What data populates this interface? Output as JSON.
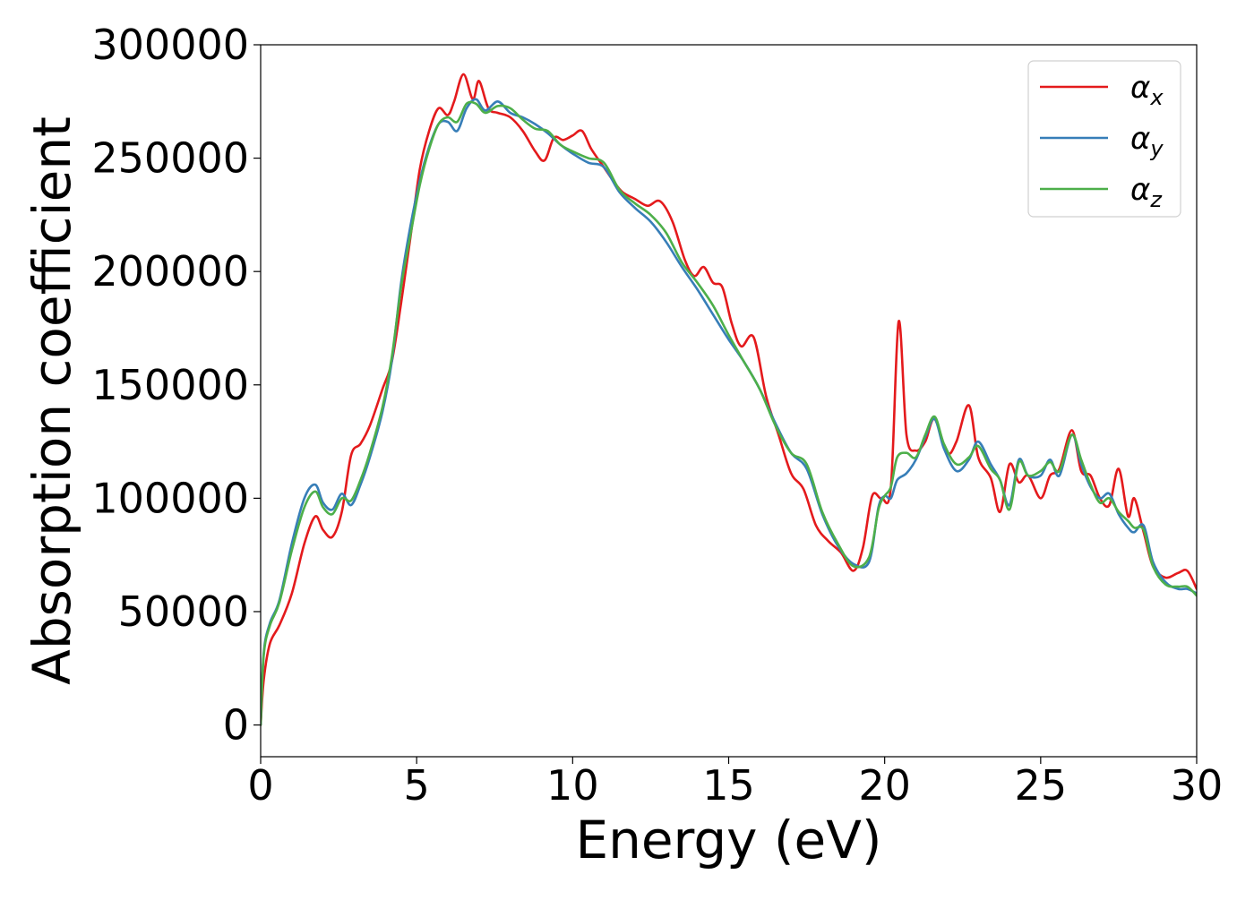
{
  "chart_data": {
    "type": "line",
    "title": "",
    "xlabel": "Energy (eV)",
    "ylabel": "Absorption coefficient",
    "xlim": [
      0,
      30
    ],
    "ylim": [
      -14000,
      300000
    ],
    "xticks": [
      0,
      5,
      10,
      15,
      20,
      25,
      30
    ],
    "xtick_labels": [
      "0",
      "5",
      "10",
      "15",
      "20",
      "25",
      "30"
    ],
    "yticks": [
      0,
      50000,
      100000,
      150000,
      200000,
      250000,
      300000
    ],
    "ytick_labels": [
      "0",
      "50000",
      "100000",
      "150000",
      "200000",
      "250000",
      "300000"
    ],
    "grid": false,
    "legend_position": "top-right",
    "series": [
      {
        "name": "α_x",
        "legend_symbol": "α",
        "legend_subscript": "x",
        "color": "#e41a1c",
        "x": [
          0,
          0.1,
          0.3,
          0.6,
          1.0,
          1.4,
          1.75,
          2.0,
          2.3,
          2.6,
          2.9,
          3.2,
          3.5,
          3.9,
          4.2,
          4.5,
          4.8,
          5.1,
          5.4,
          5.7,
          6.0,
          6.2,
          6.5,
          6.8,
          7.0,
          7.3,
          7.6,
          8.0,
          8.4,
          8.8,
          9.1,
          9.4,
          9.7,
          10.0,
          10.3,
          10.6,
          11.0,
          11.3,
          11.6,
          12.0,
          12.4,
          12.8,
          13.2,
          13.6,
          13.9,
          14.2,
          14.5,
          14.8,
          15.1,
          15.4,
          15.8,
          16.2,
          16.6,
          17.0,
          17.4,
          17.8,
          18.2,
          18.6,
          19.0,
          19.3,
          19.6,
          19.9,
          20.2,
          20.45,
          20.7,
          21.0,
          21.3,
          21.6,
          22.0,
          22.3,
          22.7,
          23.0,
          23.4,
          23.7,
          24.0,
          24.3,
          24.6,
          25.0,
          25.3,
          25.6,
          26.0,
          26.3,
          26.6,
          26.9,
          27.2,
          27.5,
          27.8,
          28.0,
          28.3,
          28.6,
          29.0,
          29.4,
          29.7,
          30.0
        ],
        "values": [
          0,
          20000,
          36000,
          44000,
          58000,
          80000,
          92000,
          86000,
          83000,
          94000,
          119000,
          124000,
          132000,
          148000,
          160000,
          186000,
          215000,
          245000,
          262000,
          272000,
          269000,
          275000,
          287000,
          276000,
          284000,
          272000,
          270000,
          268000,
          262000,
          253000,
          249000,
          259000,
          258000,
          260000,
          262000,
          254000,
          246000,
          240000,
          235000,
          232000,
          229000,
          231000,
          222000,
          205000,
          198000,
          202000,
          195000,
          193000,
          177000,
          167000,
          171000,
          145000,
          128000,
          111000,
          104000,
          88000,
          81000,
          76000,
          68000,
          78000,
          101000,
          100000,
          105000,
          178000,
          128000,
          121000,
          125000,
          135000,
          120000,
          125000,
          141000,
          118000,
          109000,
          94000,
          115000,
          107000,
          110000,
          100000,
          110000,
          113000,
          130000,
          112000,
          110000,
          100000,
          97000,
          113000,
          92000,
          100000,
          85000,
          70000,
          65000,
          67000,
          68000,
          60000
        ]
      },
      {
        "name": "α_y",
        "legend_symbol": "α",
        "legend_subscript": "y",
        "color": "#377eb8",
        "x": [
          0,
          0.1,
          0.3,
          0.6,
          1.0,
          1.4,
          1.75,
          2.0,
          2.3,
          2.6,
          2.9,
          3.2,
          3.5,
          3.9,
          4.2,
          4.5,
          4.8,
          5.1,
          5.4,
          5.7,
          6.0,
          6.3,
          6.6,
          6.9,
          7.2,
          7.6,
          8.0,
          8.4,
          8.8,
          9.2,
          9.6,
          10.0,
          10.5,
          11.0,
          11.5,
          12.0,
          12.5,
          13.0,
          13.5,
          14.0,
          14.5,
          15.0,
          15.5,
          16.0,
          16.5,
          17.0,
          17.5,
          18.0,
          18.5,
          19.0,
          19.5,
          19.8,
          20.0,
          20.2,
          20.4,
          20.7,
          21.0,
          21.3,
          21.6,
          21.9,
          22.3,
          22.7,
          23.0,
          23.4,
          23.7,
          24.0,
          24.3,
          24.6,
          25.0,
          25.3,
          25.6,
          26.0,
          26.3,
          26.6,
          26.9,
          27.2,
          27.5,
          27.8,
          28.0,
          28.3,
          28.6,
          29.0,
          29.4,
          29.7,
          30.0
        ],
        "values": [
          0,
          32000,
          45000,
          55000,
          80000,
          100000,
          106000,
          98000,
          95000,
          102000,
          97000,
          106000,
          118000,
          138000,
          160000,
          195000,
          220000,
          240000,
          255000,
          265000,
          266000,
          262000,
          272000,
          276000,
          271000,
          275000,
          270000,
          268000,
          265000,
          261000,
          256000,
          252000,
          248000,
          246000,
          235000,
          228000,
          222000,
          213000,
          202000,
          192000,
          181000,
          170000,
          160000,
          148000,
          133000,
          120000,
          113000,
          93000,
          79000,
          71000,
          72000,
          96000,
          101000,
          100000,
          108000,
          111000,
          117000,
          127000,
          135000,
          122000,
          112000,
          117000,
          125000,
          115000,
          108000,
          97000,
          117000,
          110000,
          110000,
          117000,
          110000,
          128000,
          115000,
          105000,
          100000,
          102000,
          93000,
          87000,
          85000,
          88000,
          72000,
          63000,
          60000,
          60000,
          58000
        ]
      },
      {
        "name": "α_z",
        "legend_symbol": "α",
        "legend_subscript": "z",
        "color": "#4daf4a",
        "x": [
          0,
          0.1,
          0.3,
          0.6,
          1.0,
          1.4,
          1.75,
          2.0,
          2.3,
          2.6,
          2.9,
          3.2,
          3.5,
          3.9,
          4.2,
          4.5,
          4.8,
          5.1,
          5.4,
          5.7,
          6.0,
          6.3,
          6.6,
          6.9,
          7.2,
          7.6,
          8.0,
          8.4,
          8.8,
          9.2,
          9.6,
          10.0,
          10.5,
          11.0,
          11.5,
          12.0,
          12.5,
          13.0,
          13.5,
          14.0,
          14.5,
          15.0,
          15.5,
          16.0,
          16.5,
          17.0,
          17.5,
          18.0,
          18.5,
          19.0,
          19.5,
          19.8,
          20.0,
          20.2,
          20.4,
          20.7,
          21.0,
          21.3,
          21.6,
          21.9,
          22.3,
          22.7,
          23.0,
          23.4,
          23.7,
          24.0,
          24.3,
          24.6,
          25.0,
          25.3,
          25.6,
          26.0,
          26.3,
          26.6,
          26.9,
          27.2,
          27.5,
          27.8,
          28.0,
          28.3,
          28.6,
          29.0,
          29.4,
          29.7,
          30.0
        ],
        "values": [
          0,
          31000,
          44000,
          54000,
          77000,
          96000,
          103000,
          96000,
          93000,
          100000,
          99000,
          108000,
          120000,
          140000,
          162000,
          193000,
          216000,
          238000,
          254000,
          265000,
          268000,
          266000,
          274000,
          274000,
          270000,
          273000,
          272000,
          267000,
          263000,
          262000,
          256000,
          253000,
          250000,
          248000,
          236000,
          230000,
          225000,
          217000,
          204000,
          195000,
          185000,
          172000,
          160000,
          148000,
          132000,
          120000,
          115000,
          94000,
          80000,
          70000,
          74000,
          95000,
          101000,
          105000,
          118000,
          120000,
          118000,
          128000,
          136000,
          124000,
          115000,
          118000,
          123000,
          113000,
          108000,
          95000,
          116000,
          110000,
          112000,
          116000,
          112000,
          128000,
          117000,
          106000,
          98000,
          100000,
          94000,
          90000,
          87000,
          86000,
          70000,
          62000,
          61000,
          61000,
          57000
        ]
      }
    ]
  }
}
